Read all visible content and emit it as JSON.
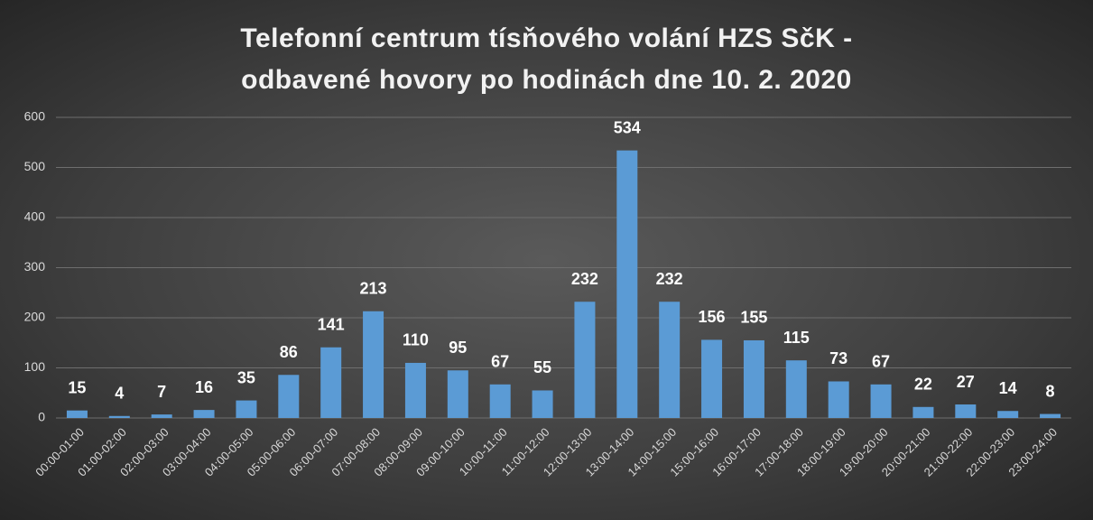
{
  "chart_data": {
    "type": "bar",
    "title": "Telefonní centrum tísňového volání HZS SčK - odbavené hovory po hodinách dne 10. 2. 2020",
    "categories": [
      "00:00-01:00",
      "01:00-02:00",
      "02:00-03:00",
      "03:00-04:00",
      "04:00-05:00",
      "05:00-06:00",
      "06:00-07:00",
      "07:00-08:00",
      "08:00-09:00",
      "09:00-10:00",
      "10:00-11:00",
      "11:00-12:00",
      "12:00-13:00",
      "13:00-14:00",
      "14:00-15:00",
      "15:00-16:00",
      "16:00-17:00",
      "17:00-18:00",
      "18:00-19:00",
      "19:00-20:00",
      "20:00-21:00",
      "21:00-22:00",
      "22:00-23:00",
      "23:00-24:00"
    ],
    "values": [
      15,
      4,
      7,
      16,
      35,
      86,
      141,
      213,
      110,
      95,
      67,
      55,
      232,
      534,
      232,
      156,
      155,
      115,
      73,
      67,
      22,
      27,
      14,
      8
    ],
    "color": "#5b9bd5",
    "ylim": [
      0,
      600
    ],
    "yticks": [
      0,
      100,
      200,
      300,
      400,
      500,
      600
    ],
    "grid": true
  }
}
